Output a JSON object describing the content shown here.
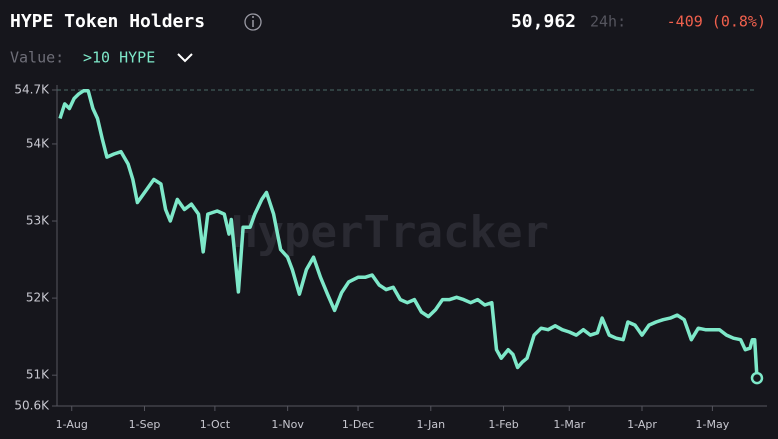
{
  "header": {
    "title": "HYPE Token Holders",
    "current": "50,962",
    "change_label": "24h:",
    "change": "-409 (0.8%)",
    "filter_label": "Value:",
    "filter_value": ">10 HYPE"
  },
  "chart_data": {
    "type": "line",
    "watermark": "HyperTracker",
    "color": "#7ee8c9",
    "x": [
      "27-Jul",
      "29-Jul",
      "31-Jul",
      "2-Aug",
      "4-Aug",
      "6-Aug",
      "8-Aug",
      "10-Aug",
      "12-Aug",
      "14-Aug",
      "16-Aug",
      "19-Aug",
      "22-Aug",
      "25-Aug",
      "27-Aug",
      "29-Aug",
      "2-Sep",
      "5-Sep",
      "8-Sep",
      "10-Sep",
      "12-Sep",
      "15-Sep",
      "18-Sep",
      "21-Sep",
      "24-Sep",
      "26-Sep",
      "28-Sep",
      "2-Oct",
      "5-Oct",
      "7-Oct",
      "8-Oct",
      "11-Oct",
      "13-Oct",
      "16-Oct",
      "18-Oct",
      "21-Oct",
      "23-Oct",
      "26-Oct",
      "29-Oct",
      "1-Nov",
      "3-Nov",
      "6-Nov",
      "9-Nov",
      "12-Nov",
      "15-Nov",
      "18-Nov",
      "21-Nov",
      "24-Nov",
      "27-Nov",
      "1-Dec",
      "4-Dec",
      "7-Dec",
      "10-Dec",
      "13-Dec",
      "16-Dec",
      "19-Dec",
      "22-Dec",
      "25-Dec",
      "28-Dec",
      "31-Dec",
      "3-Jan",
      "6-Jan",
      "9-Jan",
      "12-Jan",
      "15-Jan",
      "18-Jan",
      "21-Jan",
      "24-Jan",
      "27-Jan",
      "29-Jan",
      "31-Jan",
      "3-Feb",
      "5-Feb",
      "7-Feb",
      "9-Feb",
      "11-Feb",
      "14-Feb",
      "17-Feb",
      "20-Feb",
      "23-Feb",
      "26-Feb",
      "1-Mar",
      "4-Mar",
      "7-Mar",
      "10-Mar",
      "13-Mar",
      "15-Mar",
      "18-Mar",
      "21-Mar",
      "24-Mar",
      "26-Mar",
      "29-Mar",
      "1-Apr",
      "4-Apr",
      "7-Apr",
      "10-Apr",
      "13-Apr",
      "16-Apr",
      "19-Apr",
      "22-Apr",
      "25-Apr",
      "28-Apr",
      "1-May",
      "4-May",
      "7-May",
      "10-May",
      "13-May",
      "15-May",
      "17-May",
      "18-May",
      "19-May",
      "20-May"
    ],
    "values": [
      54330,
      54520,
      54460,
      54590,
      54650,
      54690,
      54690,
      54460,
      54330,
      54070,
      53830,
      53870,
      53900,
      53740,
      53540,
      53240,
      53410,
      53540,
      53480,
      53150,
      53000,
      53280,
      53150,
      53220,
      53090,
      52600,
      53090,
      53130,
      53090,
      52830,
      53020,
      52080,
      52920,
      52920,
      53090,
      53280,
      53370,
      53090,
      52630,
      52530,
      52370,
      52050,
      52370,
      52530,
      52270,
      52050,
      51840,
      52070,
      52210,
      52270,
      52270,
      52300,
      52170,
      52110,
      52140,
      51980,
      51940,
      51980,
      51820,
      51760,
      51850,
      51980,
      51980,
      52010,
      51980,
      51940,
      51980,
      51910,
      51940,
      51330,
      51220,
      51330,
      51270,
      51100,
      51170,
      51220,
      51520,
      51610,
      51590,
      51640,
      51590,
      51560,
      51520,
      51590,
      51520,
      51550,
      51740,
      51520,
      51480,
      51460,
      51690,
      51650,
      51520,
      51650,
      51690,
      51720,
      51740,
      51780,
      51720,
      51460,
      51610,
      51590,
      51590,
      51590,
      51520,
      51480,
      51460,
      51330,
      51350,
      51460,
      51460,
      50962
    ],
    "ylim": [
      50600,
      54700
    ],
    "yticks": [
      {
        "value": 54700,
        "label": "54.7K"
      },
      {
        "value": 54000,
        "label": "54K"
      },
      {
        "value": 53000,
        "label": "53K"
      },
      {
        "value": 52000,
        "label": "52K"
      },
      {
        "value": 51000,
        "label": "51K"
      },
      {
        "value": 50600,
        "label": "50.6K"
      }
    ],
    "xticks": [
      "1-Aug",
      "1-Sep",
      "1-Oct",
      "1-Nov",
      "1-Dec",
      "1-Jan",
      "1-Feb",
      "1-Mar",
      "1-Apr",
      "1-May"
    ]
  }
}
